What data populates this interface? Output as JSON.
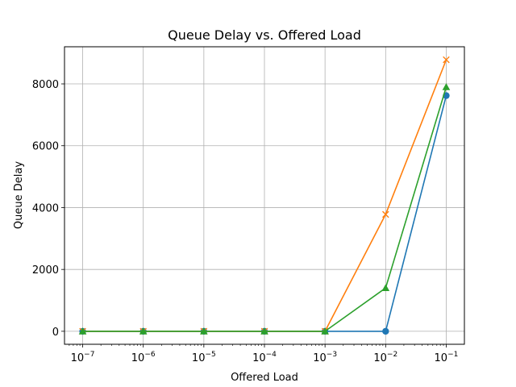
{
  "chart_data": {
    "type": "line",
    "title": "Queue Delay vs. Offered Load",
    "xlabel": "Offered Load",
    "ylabel": "Queue Delay",
    "xscale": "log",
    "x": [
      1e-07,
      1e-06,
      1e-05,
      0.0001,
      0.001,
      0.01,
      0.1
    ],
    "xticks": [
      {
        "base": "10",
        "exp": "−7"
      },
      {
        "base": "10",
        "exp": "−6"
      },
      {
        "base": "10",
        "exp": "−5"
      },
      {
        "base": "10",
        "exp": "−4"
      },
      {
        "base": "10",
        "exp": "−3"
      },
      {
        "base": "10",
        "exp": "−2"
      },
      {
        "base": "10",
        "exp": "−1"
      }
    ],
    "yticks": [
      "0",
      "2000",
      "4000",
      "6000",
      "8000"
    ],
    "ytick_values": [
      0,
      2000,
      4000,
      6000,
      8000
    ],
    "ylim": [
      -420,
      9200
    ],
    "xlim_log10": [
      -7.3,
      -0.7
    ],
    "grid": true,
    "series": [
      {
        "values": [
          0,
          0,
          0,
          0,
          0,
          0,
          7620
        ],
        "color": "#1f77b4",
        "marker": "circle"
      },
      {
        "values": [
          0,
          0,
          0,
          0,
          0,
          3780,
          8780
        ],
        "color": "#ff7f0e",
        "marker": "x"
      },
      {
        "values": [
          0,
          0,
          0,
          0,
          0,
          1400,
          7900
        ],
        "color": "#2ca02c",
        "marker": "triangle"
      }
    ]
  }
}
